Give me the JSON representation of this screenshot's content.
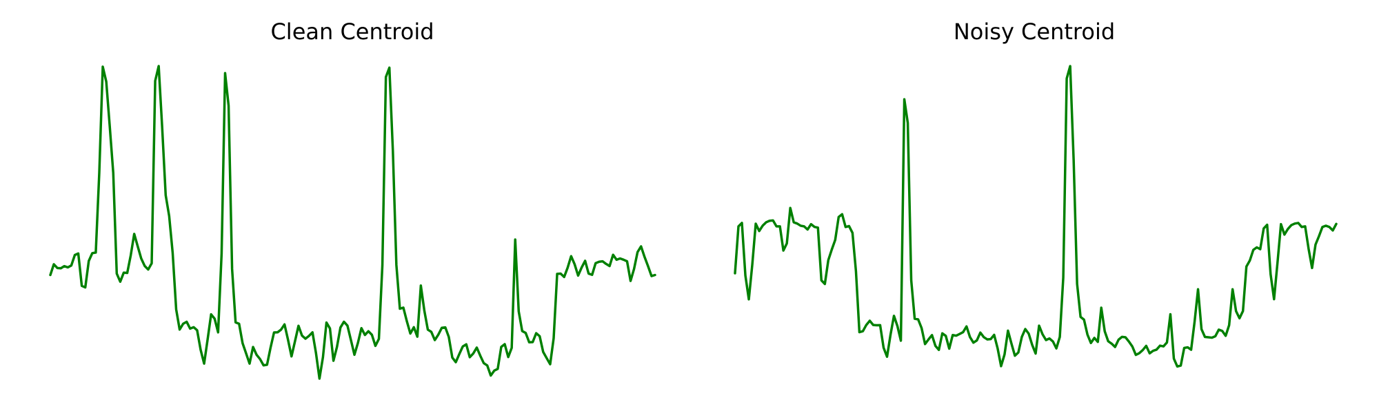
{
  "line_color": "#008000",
  "chart_data": [
    {
      "type": "line",
      "title": "Clean Centroid",
      "xlabel": "",
      "ylabel": "",
      "axes_visible": false,
      "grid": false,
      "legend": "none",
      "ylim": [
        0,
        1
      ],
      "series": [
        {
          "values": [
            0.3315,
            0.3658,
            0.3539,
            0.3529,
            0.3599,
            0.3559,
            0.3619,
            0.3953,
            0.4003,
            0.2967,
            0.2917,
            0.3764,
            0.4013,
            0.4033,
            0.6581,
            0.998,
            0.9503,
            0.8069,
            0.6581,
            0.336,
            0.3101,
            0.339,
            0.338,
            0.3942,
            0.4629,
            0.4231,
            0.3843,
            0.3604,
            0.349,
            0.3689,
            0.9527,
            1.0,
            0.8029,
            0.5869,
            0.5201,
            0.4022,
            0.2216,
            0.1569,
            0.1754,
            0.1818,
            0.1599,
            0.1644,
            0.1545,
            0.0922,
            0.0479,
            0.1256,
            0.2056,
            0.1917,
            0.148,
            0.3998,
            0.9774,
            0.8732,
            0.3509,
            0.1798,
            0.1754,
            0.1132,
            0.0809,
            0.0479,
            0.101,
            0.0763,
            0.0624,
            0.0424,
            0.0444,
            0.0987,
            0.1475,
            0.148,
            0.1565,
            0.1734,
            0.1241,
            0.0711,
            0.1197,
            0.1689,
            0.1376,
            0.1277,
            0.1366,
            0.148,
            0.0818,
            0.0,
            0.0688,
            0.1793,
            0.1604,
            0.057,
            0.1012,
            0.1634,
            0.1818,
            0.1694,
            0.1232,
            0.0763,
            0.1142,
            0.1614,
            0.1396,
            0.1515,
            0.1401,
            0.1048,
            0.1271,
            0.3629,
            0.9651,
            0.9949,
            0.7286,
            0.3638,
            0.2236,
            0.2271,
            0.1833,
            0.1441,
            0.1644,
            0.1341,
            0.2976,
            0.2177,
            0.1565,
            0.1495,
            0.1232,
            0.1406,
            0.1625,
            0.1639,
            0.1331,
            0.0674,
            0.0525,
            0.0783,
            0.1028,
            0.1097,
            0.0684,
            0.0803,
            0.0992,
            0.0733,
            0.0494,
            0.042,
            0.0097,
            0.0254,
            0.0311,
            0.1013,
            0.1102,
            0.0689,
            0.0983,
            0.4449,
            0.2151,
            0.1521,
            0.146,
            0.1162,
            0.1167,
            0.1451,
            0.1356,
            0.0853,
            0.0654,
            0.046,
            0.1291,
            0.3352,
            0.336,
            0.3251,
            0.3549,
            0.3917,
            0.3658,
            0.3296,
            0.3554,
            0.3769,
            0.336,
            0.332,
            0.3693,
            0.3739,
            0.3753,
            0.3669,
            0.3601,
            0.3962,
            0.3803,
            0.3843,
            0.3804,
            0.3753,
            0.3126,
            0.3509,
            0.4047,
            0.4231,
            0.3895,
            0.3599,
            0.3281,
            0.3315
          ]
        }
      ]
    },
    {
      "type": "line",
      "title": "Noisy Centroid",
      "xlabel": "",
      "ylabel": "",
      "axes_visible": false,
      "grid": false,
      "legend": "none",
      "ylim": [
        0,
        1
      ],
      "series": [
        {
          "values": [
            0.337,
            0.4871,
            0.498,
            0.3301,
            0.2535,
            0.3648,
            0.4956,
            0.4722,
            0.4892,
            0.5001,
            0.505,
            0.506,
            0.4871,
            0.4871,
            0.4096,
            0.4325,
            0.5459,
            0.5001,
            0.496,
            0.4891,
            0.4871,
            0.4771,
            0.4941,
            0.4853,
            0.483,
            0.3144,
            0.3027,
            0.3789,
            0.4127,
            0.4437,
            0.5171,
            0.5259,
            0.4851,
            0.4881,
            0.4663,
            0.3439,
            0.1485,
            0.1516,
            0.1716,
            0.185,
            0.1716,
            0.1706,
            0.171,
            0.0988,
            0.07,
            0.14,
            0.2008,
            0.1681,
            0.1213,
            0.8936,
            0.8179,
            0.3144,
            0.1915,
            0.1895,
            0.1617,
            0.1105,
            0.1253,
            0.1392,
            0.1046,
            0.0918,
            0.1447,
            0.1367,
            0.0958,
            0.1393,
            0.1373,
            0.1427,
            0.1486,
            0.1669,
            0.1328,
            0.115,
            0.1223,
            0.1471,
            0.1326,
            0.1254,
            0.1263,
            0.1398,
            0.0968,
            0.0398,
            0.077,
            0.1533,
            0.1122,
            0.0732,
            0.0837,
            0.1331,
            0.1585,
            0.1437,
            0.1079,
            0.0801,
            0.1694,
            0.1418,
            0.1233,
            0.1283,
            0.1189,
            0.0966,
            0.1334,
            0.3232,
            0.9604,
            1.0,
            0.7001,
            0.3033,
            0.1974,
            0.1885,
            0.1407,
            0.1139,
            0.1302,
            0.1174,
            0.2269,
            0.1513,
            0.1195,
            0.1117,
            0.1012,
            0.1245,
            0.1336,
            0.1322,
            0.1184,
            0.1024,
            0.0758,
            0.0813,
            0.0913,
            0.1048,
            0.0808,
            0.0889,
            0.0927,
            0.1053,
            0.1031,
            0.1155,
            0.2058,
            0.0641,
            0.0386,
            0.0416,
            0.0982,
            0.1,
            0.0923,
            0.1816,
            0.2858,
            0.1582,
            0.1333,
            0.1321,
            0.1309,
            0.1354,
            0.1565,
            0.1526,
            0.1369,
            0.1709,
            0.2858,
            0.2158,
            0.193,
            0.2161,
            0.3585,
            0.378,
            0.4118,
            0.4199,
            0.4141,
            0.4802,
            0.4921,
            0.3341,
            0.254,
            0.3712,
            0.4941,
            0.4608,
            0.4787,
            0.491,
            0.496,
            0.498,
            0.4851,
            0.4871,
            0.4151,
            0.3539,
            0.4287,
            0.4557,
            0.4851,
            0.4891,
            0.4851,
            0.4741,
            0.495
          ]
        }
      ]
    }
  ]
}
